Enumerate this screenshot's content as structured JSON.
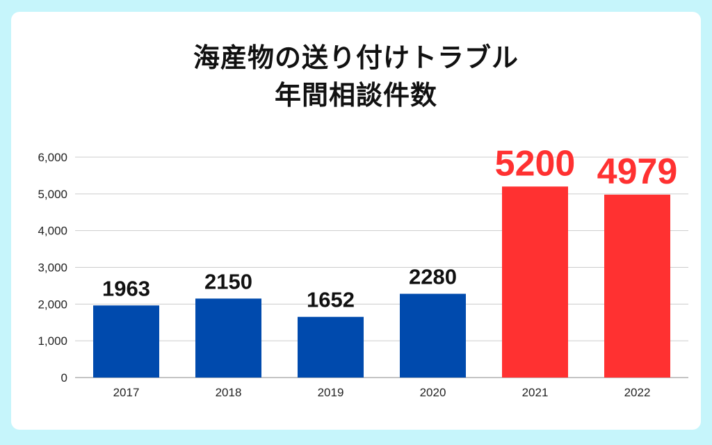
{
  "colors": {
    "background": "#c6f5fb",
    "card": "#ffffff",
    "bar_normal": "#004aad",
    "bar_highlight": "#ff3131",
    "label_normal": "#111111",
    "label_highlight": "#ff3131",
    "grid": "#cccccc"
  },
  "chart_data": {
    "type": "bar",
    "title": "海産物の送り付けトラブル",
    "subtitle": "年間相談件数",
    "categories": [
      "2017",
      "2018",
      "2019",
      "2020",
      "2021",
      "2022"
    ],
    "values": [
      1963,
      2150,
      1652,
      2280,
      5200,
      4979
    ],
    "data_labels": [
      "1963",
      "2150",
      "1652",
      "2280",
      "5200",
      "4979"
    ],
    "highlighted": [
      false,
      false,
      false,
      false,
      true,
      true
    ],
    "xlabel": "",
    "ylabel": "",
    "ylim": [
      0,
      6000
    ],
    "yticks": [
      0,
      1000,
      2000,
      3000,
      4000,
      5000,
      6000
    ],
    "ytick_labels": [
      "0",
      "1,000",
      "2,000",
      "3,000",
      "4,000",
      "5,000",
      "6,000"
    ],
    "grid": true,
    "legend": "none"
  }
}
